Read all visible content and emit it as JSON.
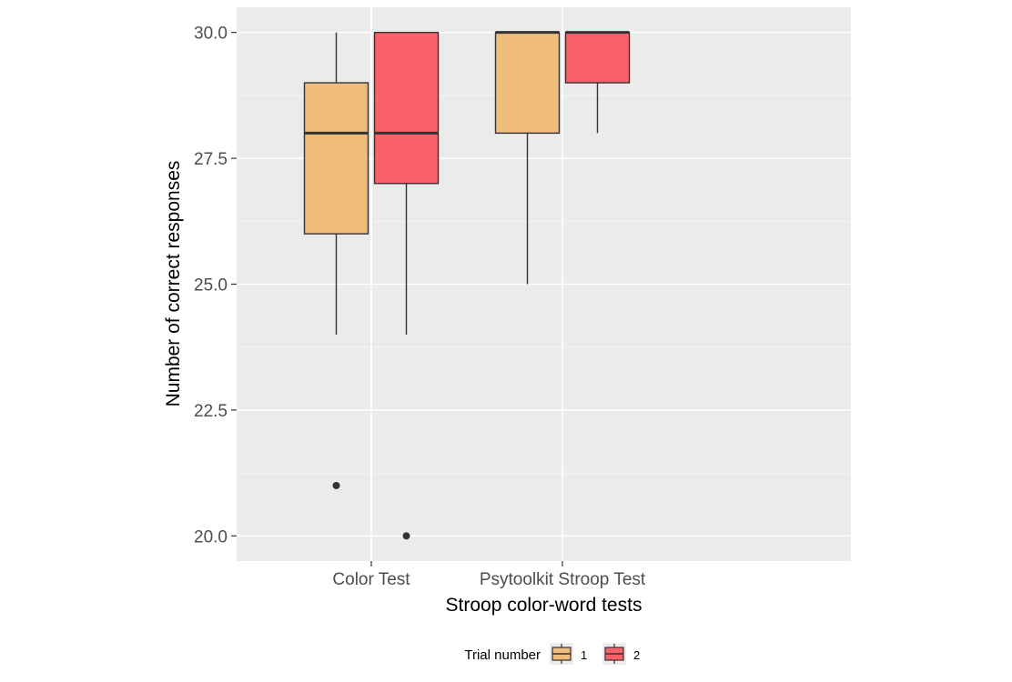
{
  "chart_data": {
    "type": "boxplot",
    "title": "",
    "xlabel": "Stroop color-word tests",
    "ylabel": "Number of correct responses",
    "categories": [
      "Color Test",
      "Psytoolkit Stroop Test"
    ],
    "ylim": [
      19.5,
      30.5
    ],
    "yticks": [
      20.0,
      22.5,
      25.0,
      27.5,
      30.0
    ],
    "ytick_labels": [
      "20.0",
      "22.5",
      "25.0",
      "27.5",
      "30.0"
    ],
    "grid": true,
    "legend": {
      "title": "Trial number",
      "position": "bottom"
    },
    "series": [
      {
        "name": "1",
        "color": "#f0bc7c",
        "boxes": [
          {
            "category": "Color Test",
            "whisker_low": 24,
            "q1": 26,
            "median": 28,
            "q3": 29,
            "whisker_high": 30,
            "outliers": [
              21
            ]
          },
          {
            "category": "Psytoolkit Stroop Test",
            "whisker_low": 25,
            "q1": 28,
            "median": 30,
            "q3": 30,
            "whisker_high": 30,
            "outliers": []
          }
        ]
      },
      {
        "name": "2",
        "color": "#fb6169",
        "boxes": [
          {
            "category": "Color Test",
            "whisker_low": 24,
            "q1": 27,
            "median": 28,
            "q3": 30,
            "whisker_high": 30,
            "outliers": [
              20
            ]
          },
          {
            "category": "Psytoolkit Stroop Test",
            "whisker_low": 28,
            "q1": 29,
            "median": 30,
            "q3": 30,
            "whisker_high": 30,
            "outliers": []
          }
        ]
      }
    ]
  }
}
